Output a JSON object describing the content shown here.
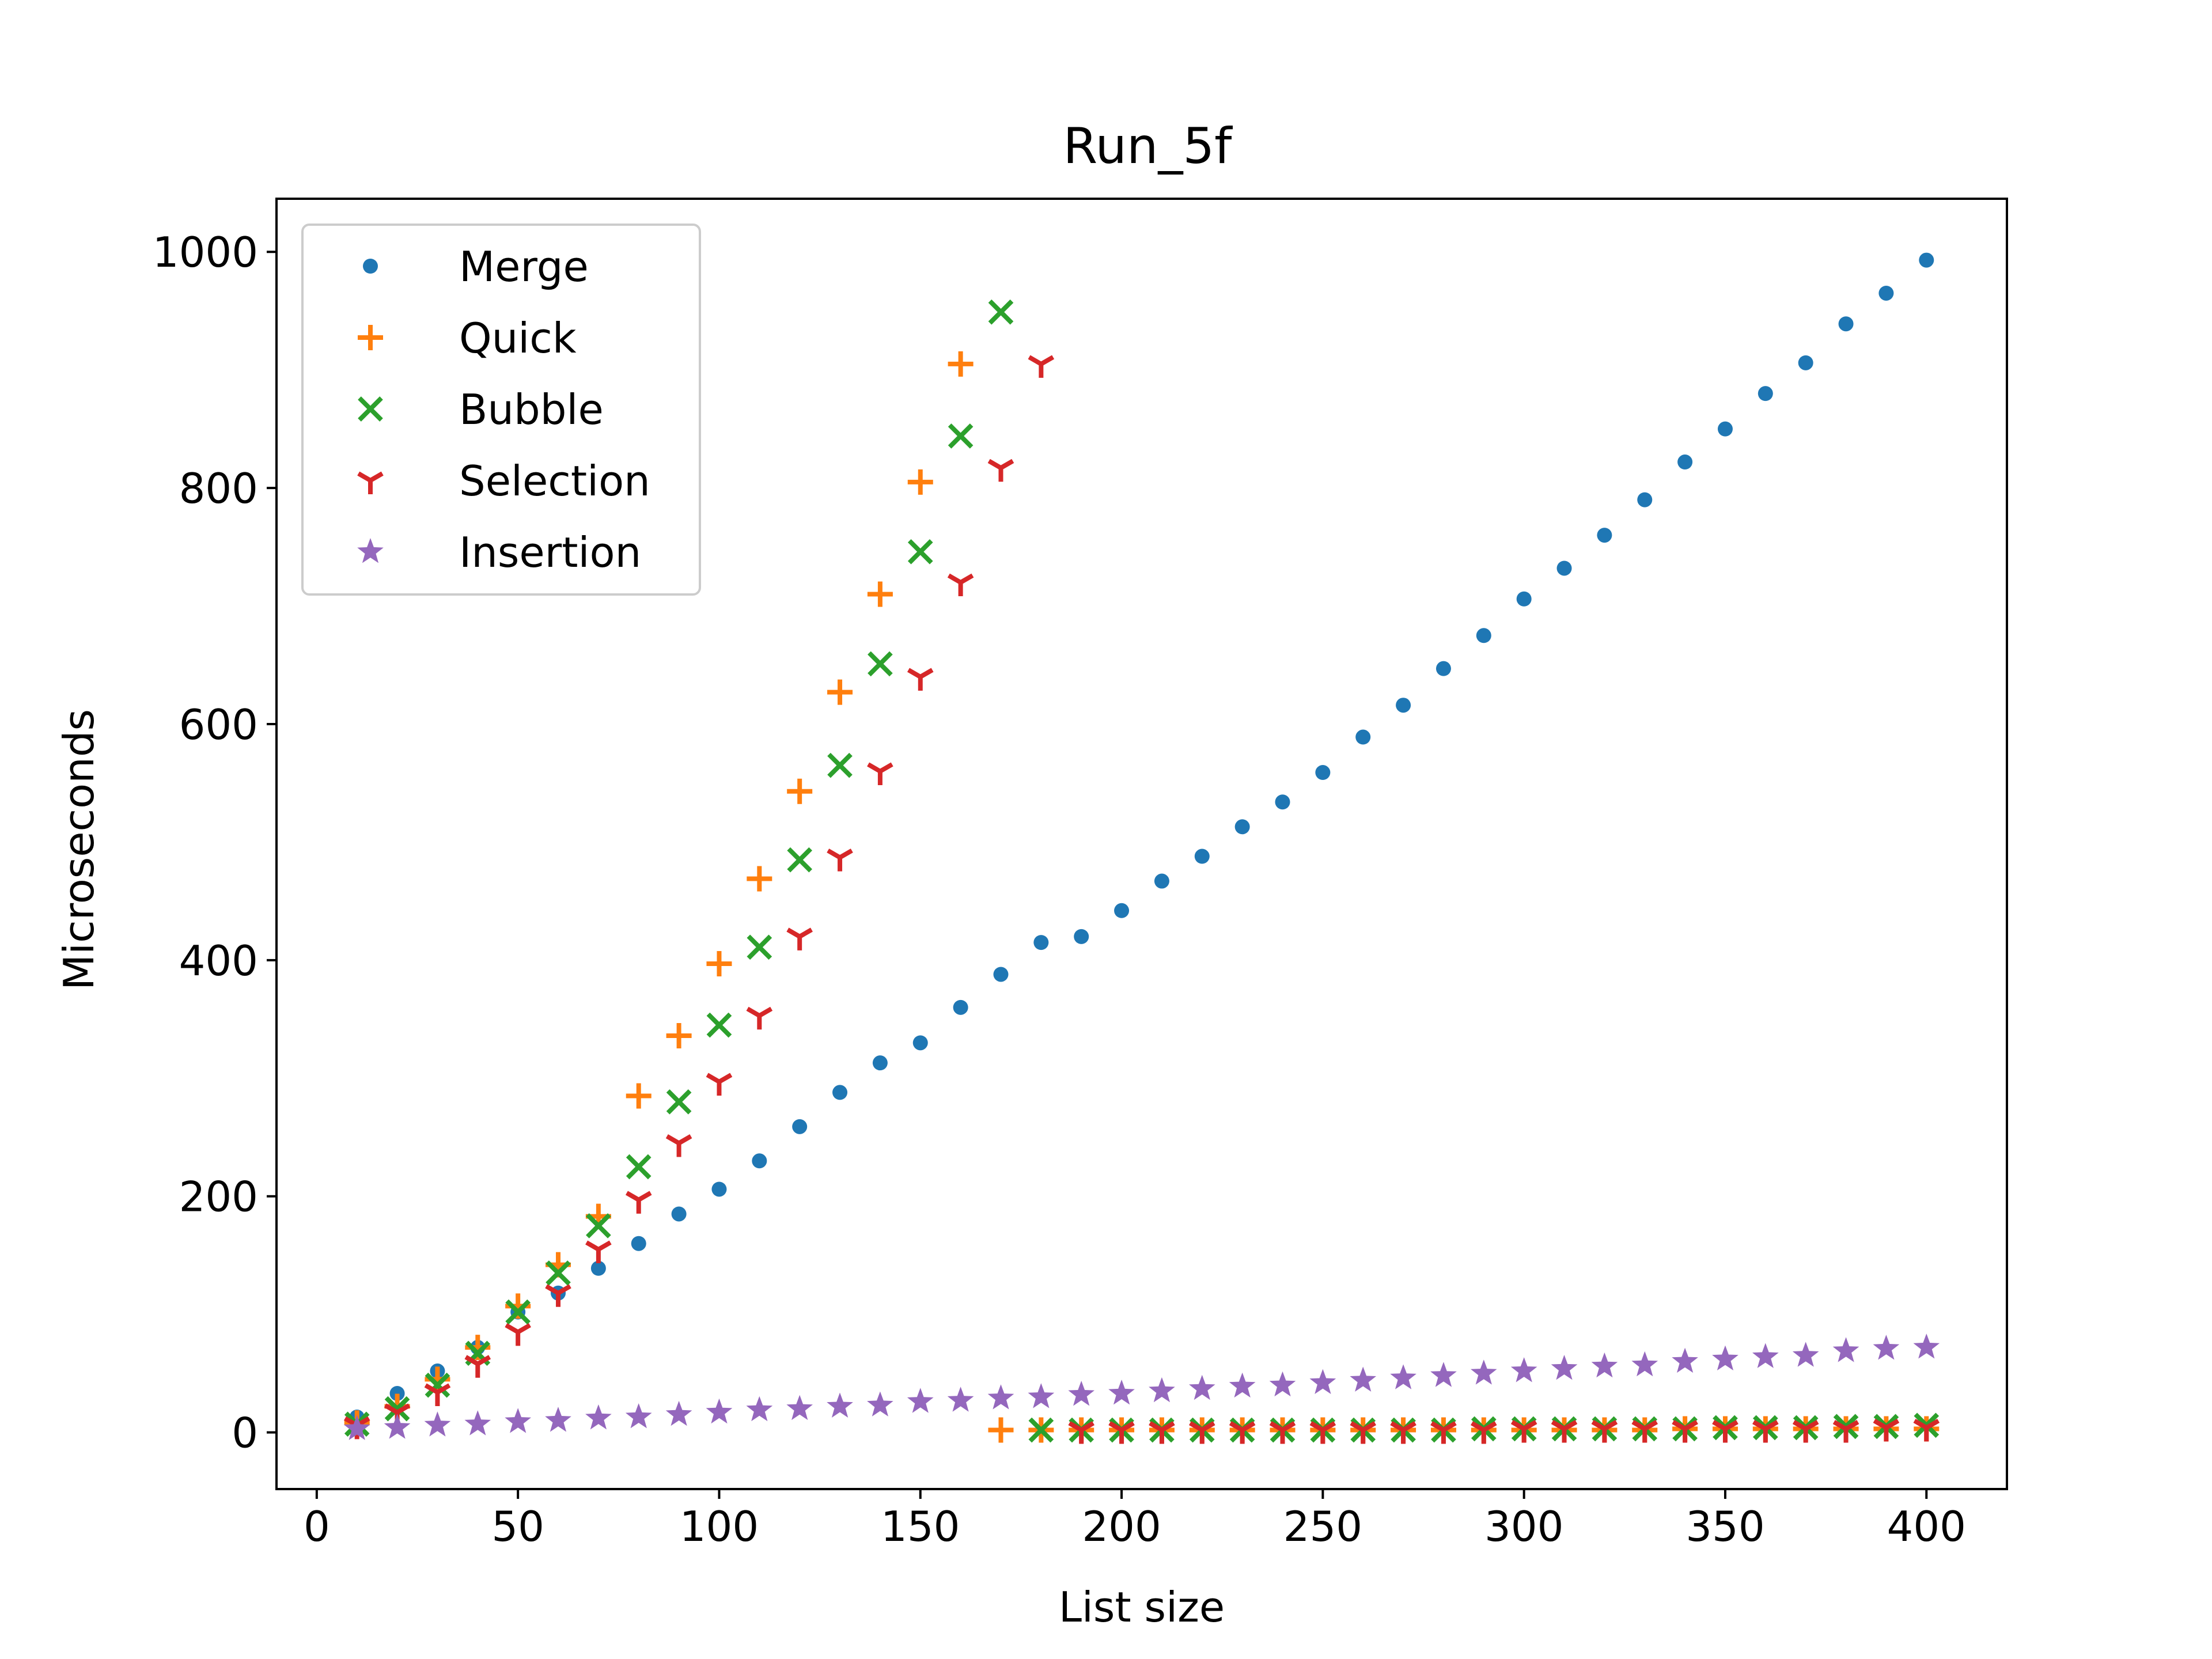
{
  "chart_data": {
    "type": "scatter",
    "title": "Run_5f",
    "xlabel": "List size",
    "ylabel": "Microseconds",
    "xlim": [
      -10,
      420
    ],
    "ylim": [
      -48,
      1045
    ],
    "xticks": [
      0,
      50,
      100,
      150,
      200,
      250,
      300,
      350,
      400
    ],
    "yticks": [
      0,
      200,
      400,
      600,
      800,
      1000
    ],
    "grid": false,
    "legend_position": "upper-left",
    "series": [
      {
        "name": "Merge",
        "marker": "circle",
        "color": "#1f77b4",
        "points": [
          [
            10,
            13
          ],
          [
            20,
            33
          ],
          [
            30,
            52
          ],
          [
            40,
            72
          ],
          [
            50,
            102
          ],
          [
            60,
            118
          ],
          [
            70,
            139
          ],
          [
            80,
            160
          ],
          [
            90,
            185
          ],
          [
            100,
            206
          ],
          [
            110,
            230
          ],
          [
            120,
            259
          ],
          [
            130,
            288
          ],
          [
            140,
            313
          ],
          [
            150,
            330
          ],
          [
            160,
            360
          ],
          [
            170,
            388
          ],
          [
            180,
            415
          ],
          [
            190,
            420
          ],
          [
            200,
            442
          ],
          [
            210,
            467
          ],
          [
            220,
            488
          ],
          [
            230,
            513
          ],
          [
            240,
            534
          ],
          [
            250,
            559
          ],
          [
            260,
            589
          ],
          [
            270,
            616
          ],
          [
            280,
            647
          ],
          [
            290,
            675
          ],
          [
            300,
            706
          ],
          [
            310,
            732
          ],
          [
            320,
            760
          ],
          [
            330,
            790
          ],
          [
            340,
            822
          ],
          [
            350,
            850
          ],
          [
            360,
            880
          ],
          [
            370,
            906
          ],
          [
            380,
            939
          ],
          [
            390,
            965
          ],
          [
            400,
            993
          ]
        ]
      },
      {
        "name": "Quick",
        "marker": "plus",
        "color": "#ff7f0e",
        "points": [
          [
            10,
            8
          ],
          [
            20,
            22
          ],
          [
            30,
            45
          ],
          [
            40,
            72
          ],
          [
            50,
            107
          ],
          [
            60,
            142
          ],
          [
            70,
            183
          ],
          [
            80,
            285
          ],
          [
            90,
            336
          ],
          [
            100,
            397
          ],
          [
            110,
            469
          ],
          [
            120,
            543
          ],
          [
            130,
            627
          ],
          [
            140,
            710
          ],
          [
            150,
            805
          ],
          [
            160,
            905
          ],
          [
            170,
            2
          ],
          [
            180,
            2
          ],
          [
            190,
            2
          ],
          [
            200,
            2
          ],
          [
            210,
            2
          ],
          [
            220,
            2
          ],
          [
            230,
            2
          ],
          [
            240,
            2
          ],
          [
            250,
            2
          ],
          [
            260,
            2
          ],
          [
            270,
            2
          ],
          [
            280,
            2
          ],
          [
            290,
            2
          ],
          [
            300,
            2
          ],
          [
            310,
            2
          ],
          [
            320,
            2
          ],
          [
            330,
            2
          ],
          [
            340,
            3
          ],
          [
            350,
            3
          ],
          [
            360,
            3
          ],
          [
            370,
            3
          ],
          [
            380,
            3
          ],
          [
            390,
            3
          ],
          [
            400,
            3
          ]
        ]
      },
      {
        "name": "Bubble",
        "marker": "x",
        "color": "#2ca02c",
        "points": [
          [
            10,
            7
          ],
          [
            20,
            20
          ],
          [
            30,
            40
          ],
          [
            40,
            67
          ],
          [
            50,
            102
          ],
          [
            60,
            135
          ],
          [
            70,
            175
          ],
          [
            80,
            225
          ],
          [
            90,
            280
          ],
          [
            100,
            345
          ],
          [
            110,
            411
          ],
          [
            120,
            485
          ],
          [
            130,
            565
          ],
          [
            140,
            651
          ],
          [
            150,
            746
          ],
          [
            160,
            844
          ],
          [
            170,
            949
          ],
          [
            180,
            2
          ],
          [
            190,
            2
          ],
          [
            200,
            2
          ],
          [
            210,
            2
          ],
          [
            220,
            2
          ],
          [
            230,
            2
          ],
          [
            240,
            2
          ],
          [
            250,
            2
          ],
          [
            260,
            2
          ],
          [
            270,
            2
          ],
          [
            280,
            2
          ],
          [
            290,
            3
          ],
          [
            300,
            3
          ],
          [
            310,
            3
          ],
          [
            320,
            3
          ],
          [
            330,
            3
          ],
          [
            340,
            3
          ],
          [
            350,
            4
          ],
          [
            360,
            4
          ],
          [
            370,
            4
          ],
          [
            380,
            5
          ],
          [
            390,
            5
          ],
          [
            400,
            6
          ]
        ]
      },
      {
        "name": "Selection",
        "marker": "tri-down",
        "color": "#d62728",
        "points": [
          [
            10,
            6
          ],
          [
            20,
            17
          ],
          [
            30,
            34
          ],
          [
            40,
            58
          ],
          [
            50,
            85
          ],
          [
            60,
            118
          ],
          [
            70,
            155
          ],
          [
            80,
            197
          ],
          [
            90,
            245
          ],
          [
            100,
            297
          ],
          [
            110,
            353
          ],
          [
            120,
            420
          ],
          [
            130,
            487
          ],
          [
            140,
            560
          ],
          [
            150,
            640
          ],
          [
            160,
            720
          ],
          [
            170,
            817
          ],
          [
            180,
            905
          ],
          [
            190,
            2
          ],
          [
            200,
            2
          ],
          [
            210,
            2
          ],
          [
            220,
            2
          ],
          [
            230,
            2
          ],
          [
            240,
            2
          ],
          [
            250,
            2
          ],
          [
            260,
            2
          ],
          [
            270,
            2
          ],
          [
            280,
            2
          ],
          [
            290,
            2
          ],
          [
            300,
            3
          ],
          [
            310,
            3
          ],
          [
            320,
            3
          ],
          [
            330,
            3
          ],
          [
            340,
            3
          ],
          [
            350,
            3
          ],
          [
            360,
            3
          ],
          [
            370,
            3
          ],
          [
            380,
            3
          ],
          [
            390,
            4
          ],
          [
            400,
            4
          ]
        ]
      },
      {
        "name": "Insertion",
        "marker": "star",
        "color": "#9467bd",
        "points": [
          [
            10,
            3
          ],
          [
            20,
            4
          ],
          [
            30,
            6
          ],
          [
            40,
            7
          ],
          [
            50,
            9
          ],
          [
            60,
            10
          ],
          [
            70,
            12
          ],
          [
            80,
            13
          ],
          [
            90,
            15
          ],
          [
            100,
            17
          ],
          [
            110,
            19
          ],
          [
            120,
            20
          ],
          [
            130,
            22
          ],
          [
            140,
            23
          ],
          [
            150,
            26
          ],
          [
            160,
            27
          ],
          [
            170,
            29
          ],
          [
            180,
            30
          ],
          [
            190,
            32
          ],
          [
            200,
            33
          ],
          [
            210,
            35
          ],
          [
            220,
            37
          ],
          [
            230,
            39
          ],
          [
            240,
            40
          ],
          [
            250,
            42
          ],
          [
            260,
            44
          ],
          [
            270,
            46
          ],
          [
            280,
            48
          ],
          [
            290,
            50
          ],
          [
            300,
            52
          ],
          [
            310,
            54
          ],
          [
            320,
            56
          ],
          [
            330,
            57
          ],
          [
            340,
            60
          ],
          [
            350,
            62
          ],
          [
            360,
            64
          ],
          [
            370,
            65
          ],
          [
            380,
            69
          ],
          [
            390,
            71
          ],
          [
            400,
            72
          ]
        ]
      }
    ]
  }
}
